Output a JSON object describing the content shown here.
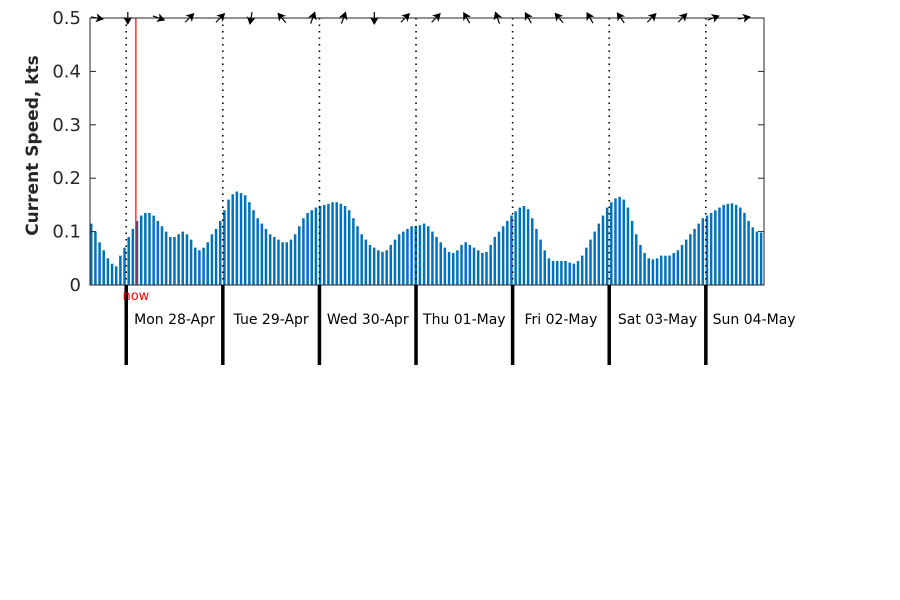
{
  "chart_data": {
    "type": "bar",
    "ylabel": "Current Speed, kts",
    "ylim": [
      0,
      0.5
    ],
    "yticks": [
      0,
      0.1,
      0.2,
      0.3,
      0.4,
      0.5
    ],
    "ytick_labels": [
      "0",
      "0.1",
      "0.2",
      "0.3",
      "0.4",
      "0.5"
    ],
    "bar_color": "#0072bd",
    "now_color": "#ff0000",
    "now_label": "now",
    "now_day_offset": 1.1,
    "first_day_offset": 0.375,
    "days": [
      "Mon 28-Apr",
      "Tue 29-Apr",
      "Wed 30-Apr",
      "Thu 01-May",
      "Fri 02-May",
      "Sat 03-May",
      "Sun 04-May"
    ],
    "speed_kts": [
      0.115,
      0.1,
      0.08,
      0.065,
      0.05,
      0.04,
      0.035,
      0.055,
      0.07,
      0.09,
      0.105,
      0.12,
      0.13,
      0.135,
      0.135,
      0.13,
      0.12,
      0.11,
      0.1,
      0.09,
      0.09,
      0.095,
      0.1,
      0.095,
      0.085,
      0.07,
      0.065,
      0.07,
      0.08,
      0.095,
      0.105,
      0.12,
      0.14,
      0.16,
      0.17,
      0.175,
      0.172,
      0.168,
      0.155,
      0.14,
      0.125,
      0.115,
      0.105,
      0.095,
      0.09,
      0.085,
      0.08,
      0.08,
      0.085,
      0.095,
      0.11,
      0.125,
      0.135,
      0.14,
      0.145,
      0.148,
      0.15,
      0.152,
      0.155,
      0.155,
      0.152,
      0.148,
      0.14,
      0.125,
      0.11,
      0.095,
      0.085,
      0.075,
      0.07,
      0.065,
      0.062,
      0.065,
      0.075,
      0.085,
      0.095,
      0.1,
      0.105,
      0.11,
      0.11,
      0.112,
      0.115,
      0.11,
      0.1,
      0.09,
      0.08,
      0.07,
      0.062,
      0.06,
      0.065,
      0.075,
      0.08,
      0.075,
      0.07,
      0.065,
      0.06,
      0.062,
      0.075,
      0.09,
      0.1,
      0.11,
      0.12,
      0.13,
      0.138,
      0.145,
      0.148,
      0.142,
      0.125,
      0.105,
      0.085,
      0.065,
      0.05,
      0.045,
      0.045,
      0.045,
      0.045,
      0.042,
      0.04,
      0.045,
      0.055,
      0.07,
      0.085,
      0.1,
      0.115,
      0.13,
      0.145,
      0.155,
      0.162,
      0.165,
      0.16,
      0.145,
      0.12,
      0.095,
      0.075,
      0.06,
      0.05,
      0.048,
      0.05,
      0.055,
      0.055,
      0.055,
      0.06,
      0.065,
      0.075,
      0.085,
      0.095,
      0.105,
      0.115,
      0.125,
      0.13,
      0.135,
      0.14,
      0.145,
      0.15,
      0.152,
      0.153,
      0.15,
      0.145,
      0.135,
      0.12,
      0.108,
      0.1,
      0.098
    ],
    "direction_deg": [
      100,
      180,
      110,
      45,
      45,
      190,
      320,
      20,
      20,
      180,
      45,
      45,
      330,
      340,
      330,
      320,
      330,
      325,
      45,
      45,
      70,
      80
    ]
  }
}
